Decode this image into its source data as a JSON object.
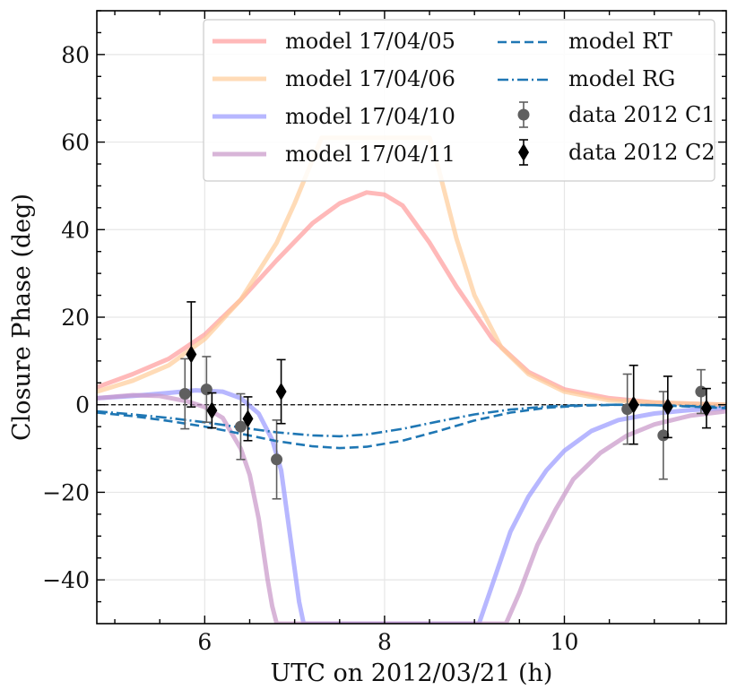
{
  "chart_data": {
    "type": "line",
    "title": "",
    "xlabel": "UTC on 2012/03/21 (h)",
    "ylabel": "Closure Phase (deg)",
    "xlim": [
      4.8,
      11.8
    ],
    "ylim": [
      -50,
      90
    ],
    "xticks": [
      6,
      8,
      10
    ],
    "yticks": [
      -40,
      -20,
      0,
      20,
      40,
      60,
      80
    ],
    "xtick_labels": [
      "6",
      "8",
      "10"
    ],
    "ytick_labels": [
      "−40",
      "−20",
      "0",
      "20",
      "40",
      "60",
      "80"
    ],
    "grid": true,
    "legend_position": "top-right",
    "model_series": [
      {
        "name": "model 17/04/05",
        "label": "model 17/04/05",
        "color": "#ff9b9b",
        "style": "solid",
        "x": [
          4.8,
          5.2,
          5.6,
          6.0,
          6.4,
          6.8,
          7.2,
          7.5,
          7.8,
          8.0,
          8.2,
          8.5,
          8.8,
          9.2,
          9.6,
          10.0,
          10.5,
          11.0,
          11.8
        ],
        "y": [
          4,
          7,
          10.5,
          16,
          24,
          33,
          41.5,
          46,
          48.5,
          48,
          45.5,
          37,
          27,
          15,
          7.5,
          3.5,
          1.5,
          0.5,
          0
        ]
      },
      {
        "name": "model 17/04/06",
        "label": "model 17/04/06",
        "color": "#ffcc99",
        "style": "solid",
        "x": [
          4.8,
          5.2,
          5.6,
          6.0,
          6.4,
          6.8,
          7.0,
          7.2,
          7.3,
          8.5,
          8.6,
          8.8,
          9.0,
          9.3,
          9.6,
          10.0,
          10.5,
          11.0,
          11.8
        ],
        "y": [
          3,
          5.5,
          9,
          15,
          24,
          37,
          46,
          56,
          61,
          61,
          54,
          38,
          25,
          13,
          7,
          3,
          1,
          0.5,
          0
        ]
      },
      {
        "name": "model 17/04/10",
        "label": "model 17/04/10",
        "color": "#9999ff",
        "style": "solid",
        "x": [
          4.8,
          5.2,
          5.6,
          5.9,
          6.2,
          6.4,
          6.6,
          6.75,
          6.85,
          6.95,
          7.05,
          7.1,
          9.05,
          9.2,
          9.4,
          9.6,
          9.8,
          10.0,
          10.3,
          10.6,
          11.0,
          11.4,
          11.8
        ],
        "y": [
          1.5,
          2,
          2.7,
          3.3,
          3,
          1.5,
          -2,
          -8,
          -15,
          -30,
          -45,
          -50,
          -50,
          -41,
          -29,
          -21,
          -15,
          -10.5,
          -6,
          -3.5,
          -2,
          -1.2,
          -0.8
        ]
      },
      {
        "name": "model 17/04/11",
        "label": "model 17/04/11",
        "color": "#c896c8",
        "style": "solid",
        "x": [
          4.8,
          5.2,
          5.5,
          5.8,
          6.0,
          6.2,
          6.4,
          6.5,
          6.6,
          6.7,
          6.75,
          6.8,
          9.35,
          9.5,
          9.7,
          9.9,
          10.1,
          10.4,
          10.7,
          11.0,
          11.4,
          11.8
        ],
        "y": [
          1.5,
          2.2,
          2,
          0.8,
          -0.5,
          -3,
          -10,
          -16,
          -26,
          -40,
          -46,
          -50,
          -50,
          -43,
          -32,
          -24,
          -17,
          -11,
          -7,
          -4.5,
          -2.5,
          -1.5
        ]
      }
    ],
    "reference_series": [
      {
        "name": "model RT",
        "label": "model RT",
        "color": "#1f77b4",
        "style": "dashed",
        "x": [
          4.8,
          5.2,
          5.6,
          6.0,
          6.4,
          6.8,
          7.2,
          7.5,
          7.8,
          8.2,
          8.6,
          9.0,
          9.4,
          9.8,
          10.2,
          10.6,
          11.0,
          11.4,
          11.8
        ],
        "y": [
          -1.8,
          -2.6,
          -3.7,
          -5,
          -6.6,
          -8.3,
          -9.5,
          -9.9,
          -9.6,
          -8.2,
          -6,
          -3.6,
          -1.8,
          -0.7,
          -0.2,
          0,
          -0.1,
          -0.4,
          -0.8
        ]
      },
      {
        "name": "model RG",
        "label": "model RG",
        "color": "#1f77b4",
        "style": "dashdot",
        "x": [
          4.8,
          5.2,
          5.6,
          6.0,
          6.4,
          6.8,
          7.2,
          7.5,
          7.8,
          8.2,
          8.6,
          9.0,
          9.4,
          9.8,
          10.2,
          10.6,
          11.0,
          11.4,
          11.8
        ],
        "y": [
          -1.5,
          -2.2,
          -3,
          -4,
          -5.2,
          -6.3,
          -7,
          -7.2,
          -6.8,
          -5.5,
          -3.8,
          -2.2,
          -1.1,
          -0.4,
          -0.1,
          0,
          -0.1,
          -0.3,
          -0.5
        ]
      }
    ],
    "data_series": [
      {
        "name": "data 2012 C1",
        "label": "data 2012 C1",
        "marker": "circle",
        "color": "#5f5f5f",
        "points": [
          {
            "x": 5.78,
            "y": 2.5,
            "err": 8
          },
          {
            "x": 6.02,
            "y": 3.5,
            "err": 7.5
          },
          {
            "x": 6.4,
            "y": -5,
            "err": 7.5
          },
          {
            "x": 6.8,
            "y": -12.5,
            "err": 9
          },
          {
            "x": 10.7,
            "y": -1,
            "err": 8
          },
          {
            "x": 11.1,
            "y": -7,
            "err": 10
          },
          {
            "x": 11.52,
            "y": 3,
            "err": 5
          }
        ]
      },
      {
        "name": "data 2012 C2",
        "label": "data 2012 C2",
        "marker": "diamond",
        "color": "#000000",
        "points": [
          {
            "x": 5.85,
            "y": 11.5,
            "err": 12
          },
          {
            "x": 6.08,
            "y": -1.3,
            "err": 4
          },
          {
            "x": 6.48,
            "y": -3.2,
            "err": 5
          },
          {
            "x": 6.85,
            "y": 3,
            "err": 7.3
          },
          {
            "x": 10.77,
            "y": 0,
            "err": 9
          },
          {
            "x": 11.15,
            "y": -0.5,
            "err": 7
          },
          {
            "x": 11.58,
            "y": -0.8,
            "err": 4.5
          }
        ]
      }
    ],
    "zero_line": {
      "y": 0,
      "color": "#000000",
      "style": "dashed"
    }
  }
}
